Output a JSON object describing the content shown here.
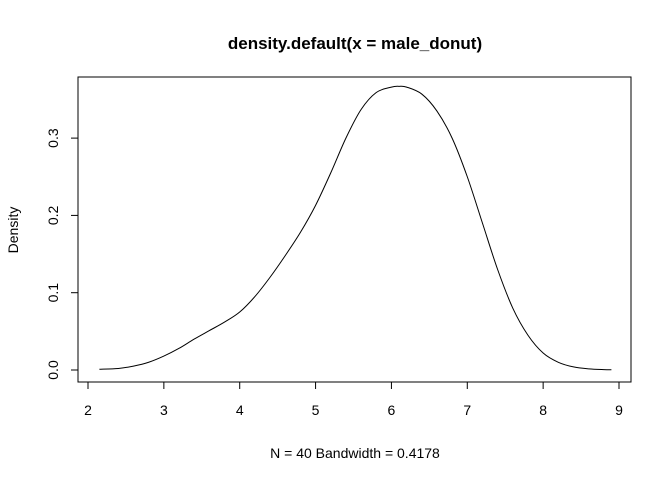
{
  "chart_data": {
    "type": "line",
    "title": "density.default(x = male_donut)",
    "xlabel": "N = 40   Bandwidth = 0.4178",
    "ylabel": "Density",
    "xlim": [
      2.0,
      9.0
    ],
    "ylim": [
      0.0,
      0.37
    ],
    "x_ticks": [
      2,
      3,
      4,
      5,
      6,
      7,
      8,
      9
    ],
    "x_tick_labels": [
      "2",
      "3",
      "4",
      "5",
      "6",
      "7",
      "8",
      "9"
    ],
    "y_ticks": [
      0.0,
      0.1,
      0.2,
      0.3
    ],
    "y_tick_labels": [
      "0.0",
      "0.1",
      "0.2",
      "0.3"
    ],
    "grid": false,
    "line_color": "#000000",
    "series": [
      {
        "x": [
          2.15,
          2.4,
          2.6,
          2.8,
          3.0,
          3.2,
          3.4,
          3.6,
          3.8,
          4.0,
          4.2,
          4.4,
          4.6,
          4.8,
          5.0,
          5.2,
          5.4,
          5.6,
          5.8,
          6.0,
          6.1,
          6.2,
          6.4,
          6.6,
          6.8,
          7.0,
          7.2,
          7.4,
          7.6,
          7.8,
          8.0,
          8.2,
          8.4,
          8.6,
          8.8,
          8.9
        ],
        "y": [
          0.001,
          0.002,
          0.005,
          0.01,
          0.018,
          0.028,
          0.04,
          0.051,
          0.062,
          0.075,
          0.095,
          0.12,
          0.148,
          0.178,
          0.213,
          0.255,
          0.3,
          0.337,
          0.359,
          0.366,
          0.367,
          0.366,
          0.357,
          0.335,
          0.3,
          0.25,
          0.19,
          0.13,
          0.08,
          0.045,
          0.022,
          0.01,
          0.004,
          0.0015,
          0.0005,
          0.0003
        ]
      }
    ]
  }
}
